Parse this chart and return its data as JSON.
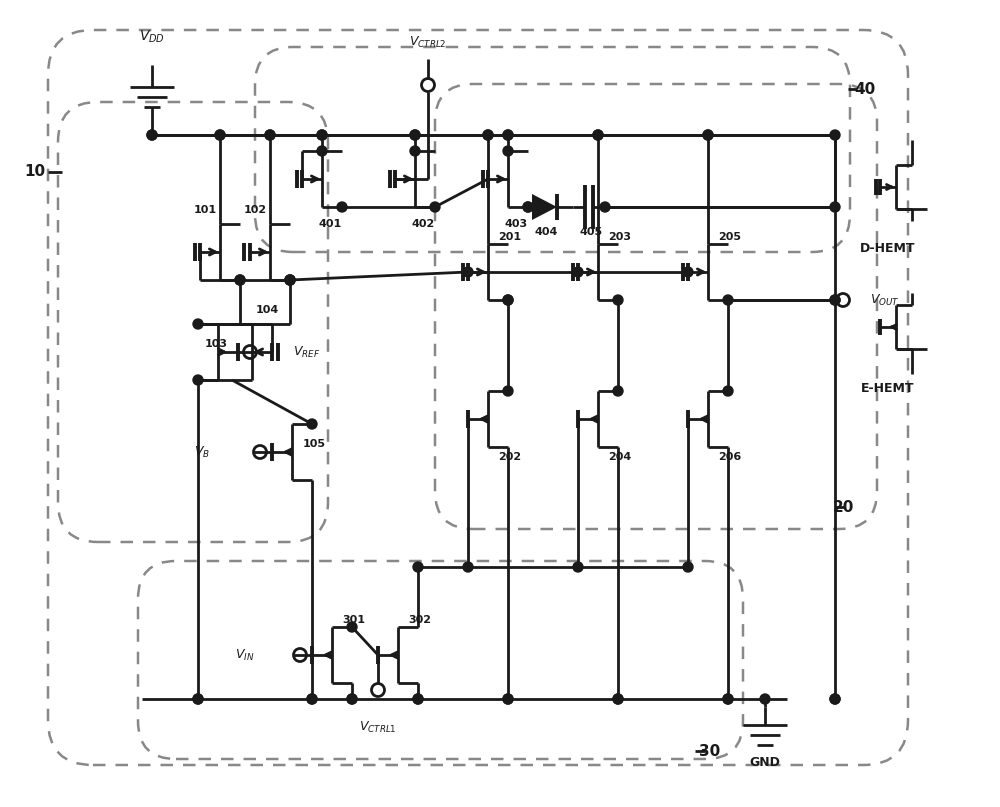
{
  "fig_w": 10.0,
  "fig_h": 8.07,
  "lw": 2.0,
  "lw_thick": 2.8,
  "lc": "#1a1a1a",
  "dc": "#888888",
  "bg": "#ffffff",
  "labels": {
    "VDD": "$V_{DD}$",
    "VCTRL2": "$V_{CTRL2}$",
    "VCTRL1": "$V_{CTRL1}$",
    "VREF": "$V_{REF}$",
    "VB": "$V_B$",
    "VIN": "$V_{IN}$",
    "VOUT": "$V_{OUT}$",
    "GND": "GND",
    "DHEMT": "D-HEMT",
    "EHEMT": "E-HEMT"
  },
  "box_labels": {
    "b10": "10",
    "b20": "20",
    "b30": "30",
    "b40": "40"
  }
}
